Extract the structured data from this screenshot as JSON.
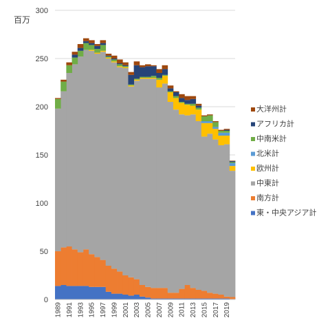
{
  "chart_data": {
    "type": "area",
    "stacked": true,
    "unit_label": "百万",
    "ylim": [
      0,
      300
    ],
    "yticks": [
      0,
      50,
      100,
      150,
      200,
      250,
      300
    ],
    "grid": "horizontal",
    "legend_position": "right",
    "x": [
      1989,
      1990,
      1991,
      1992,
      1993,
      1994,
      1995,
      1996,
      1997,
      1998,
      1999,
      2000,
      2001,
      2002,
      2003,
      2004,
      2005,
      2006,
      2007,
      2008,
      2009,
      2010,
      2011,
      2012,
      2013,
      2014,
      2015,
      2016,
      2017,
      2018,
      2019,
      2020
    ],
    "xtick_labels": [
      "1989",
      "1991",
      "1993",
      "1995",
      "1997",
      "1999",
      "2001",
      "2003",
      "2005",
      "2007",
      "2009",
      "2011",
      "2013",
      "2015",
      "2017",
      "2019"
    ],
    "series": [
      {
        "name": "東・中央アジア計",
        "color": "#4472C4",
        "values": [
          14,
          15,
          14,
          14,
          14,
          14,
          13,
          13,
          13,
          8,
          6,
          6,
          5,
          4,
          5,
          3,
          2,
          1,
          1,
          1,
          1,
          1,
          1,
          1,
          1,
          1,
          1,
          1,
          1,
          1,
          1,
          0.5
        ]
      },
      {
        "name": "南方計",
        "color": "#ED7D31",
        "values": [
          36,
          39,
          41,
          38,
          35,
          38,
          34,
          31,
          28,
          27,
          26,
          23,
          20,
          19,
          16,
          12,
          11,
          11,
          11,
          11,
          6,
          6,
          10,
          14,
          11,
          9,
          8,
          6,
          5,
          4,
          2,
          2
        ]
      },
      {
        "name": "中東計",
        "color": "#A5A5A5",
        "values": [
          148,
          162,
          180,
          192,
          203,
          207,
          211,
          211,
          216,
          215,
          214,
          212,
          215,
          198,
          206,
          214,
          216,
          217,
          208,
          212,
          198,
          190,
          181,
          176,
          180,
          175,
          160,
          165,
          160,
          155,
          158,
          131
        ]
      },
      {
        "name": "欧州計",
        "color": "#FFC000",
        "values": [
          0,
          0,
          0,
          0,
          0,
          0,
          1,
          1,
          1,
          1,
          1,
          1,
          1,
          1,
          1,
          1,
          1,
          1,
          8,
          8,
          10,
          12,
          12,
          11,
          9,
          12,
          14,
          11,
          11,
          10,
          9,
          5
        ]
      },
      {
        "name": "北米計",
        "color": "#5B9BD5",
        "values": [
          0,
          0,
          0,
          0,
          0,
          0,
          0,
          0,
          0,
          0,
          0,
          0,
          0,
          0,
          0,
          0,
          0,
          0,
          0,
          0,
          0,
          0,
          0,
          0,
          0,
          0,
          2,
          2,
          2,
          3,
          3,
          3
        ]
      },
      {
        "name": "中南米計",
        "color": "#70AD47",
        "values": [
          10,
          10,
          8,
          7,
          6,
          7,
          5,
          4,
          6,
          1,
          2,
          2,
          1,
          1,
          1,
          1,
          1,
          2,
          2,
          1,
          1,
          2,
          1,
          1,
          2,
          2,
          5,
          6,
          5,
          2,
          2,
          1
        ]
      },
      {
        "name": "アフリカ計",
        "color": "#264478",
        "values": [
          0,
          0,
          0,
          3,
          3,
          2,
          2,
          3,
          2,
          1,
          1,
          1,
          1,
          10,
          14,
          10,
          11,
          10,
          5,
          6,
          3,
          4,
          4,
          4,
          5,
          2,
          0,
          0,
          0,
          0,
          1,
          1
        ]
      },
      {
        "name": "大洋州計",
        "color": "#9E480E",
        "values": [
          1,
          2,
          3,
          3,
          4,
          3,
          3,
          2,
          3,
          2,
          3,
          4,
          3,
          3,
          4,
          2,
          2,
          1,
          4,
          4,
          3,
          1,
          4,
          4,
          3,
          2,
          1,
          1,
          1,
          1,
          1,
          0.5
        ]
      }
    ]
  }
}
